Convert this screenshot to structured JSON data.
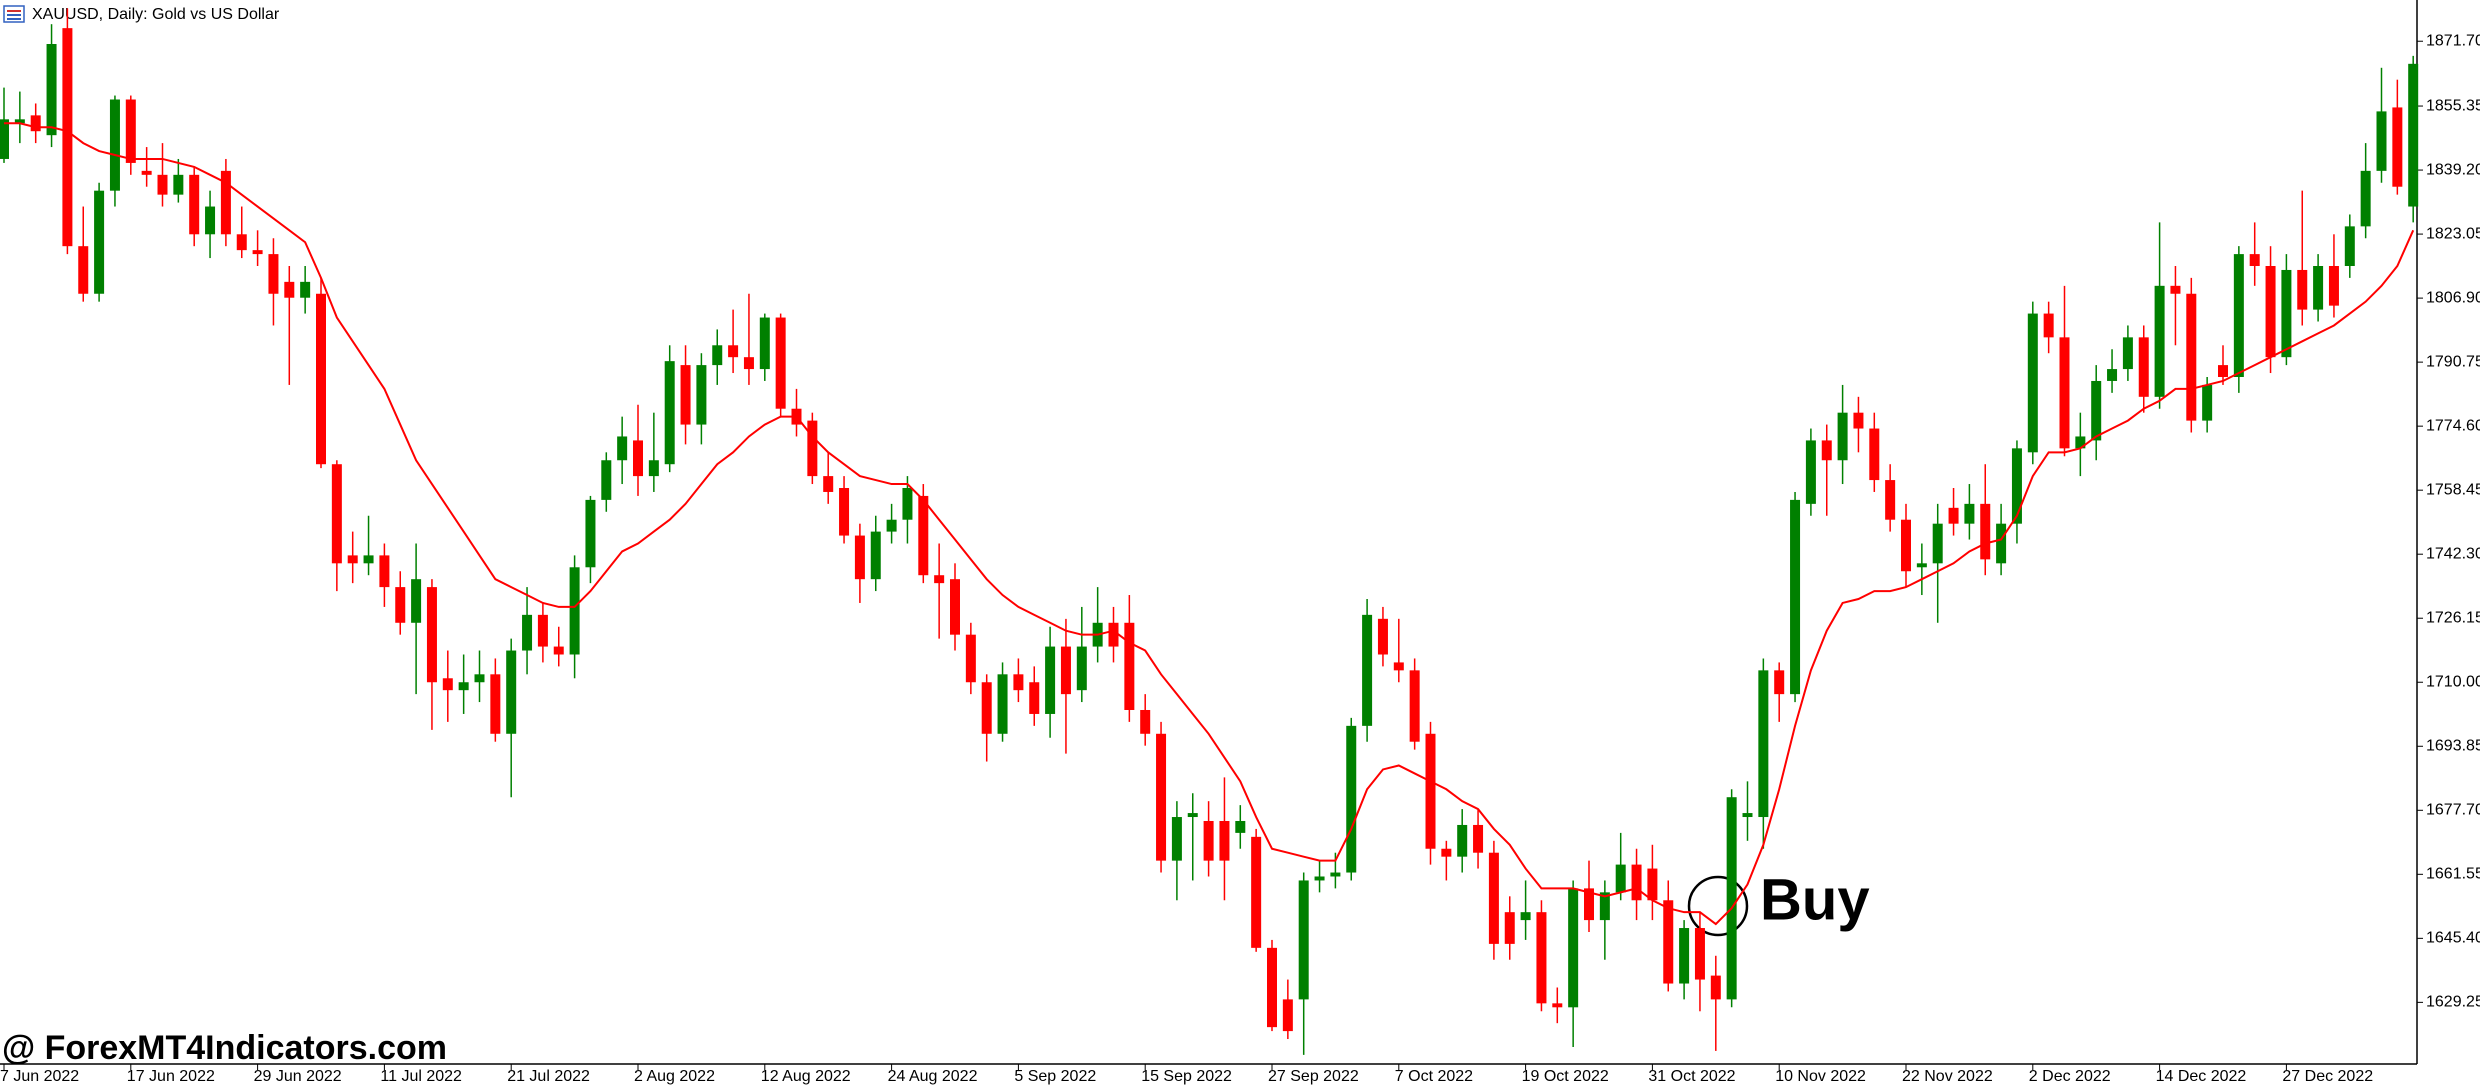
{
  "chart_data": {
    "type": "candlestick",
    "title": "XAUUSD, Daily:  Gold vs US Dollar",
    "watermark": "@ ForexMT4Indicators.com",
    "annotation": "Buy",
    "up_color": "#008000",
    "down_color": "#ff0000",
    "categories": [
      "7 Jun 2022",
      null,
      null,
      null,
      null,
      null,
      null,
      null,
      "17 Jun 2022",
      null,
      null,
      null,
      null,
      null,
      null,
      null,
      "29 Jun 2022",
      null,
      null,
      null,
      null,
      null,
      null,
      null,
      "11 Jul 2022",
      null,
      null,
      null,
      null,
      null,
      null,
      null,
      "21 Jul 2022",
      null,
      null,
      null,
      null,
      null,
      null,
      null,
      "2 Aug 2022",
      null,
      null,
      null,
      null,
      null,
      null,
      null,
      "12 Aug 2022",
      null,
      null,
      null,
      null,
      null,
      null,
      null,
      "24 Aug 2022",
      null,
      null,
      null,
      null,
      null,
      null,
      null,
      "5 Sep 2022",
      null,
      null,
      null,
      null,
      null,
      null,
      null,
      "15 Sep 2022",
      null,
      null,
      null,
      null,
      null,
      null,
      null,
      "27 Sep 2022",
      null,
      null,
      null,
      null,
      null,
      null,
      null,
      "7 Oct 2022",
      null,
      null,
      null,
      null,
      null,
      null,
      null,
      "19 Oct 2022",
      null,
      null,
      null,
      null,
      null,
      null,
      null,
      "31 Oct 2022",
      null,
      null,
      null,
      null,
      null,
      null,
      null,
      "10 Nov 2022",
      null,
      null,
      null,
      null,
      null,
      null,
      null,
      "22 Nov 2022",
      null,
      null,
      null,
      null,
      null,
      null,
      null,
      "2 Dec 2022",
      null,
      null,
      null,
      null,
      null,
      null,
      null,
      "14 Dec 2022",
      null,
      null,
      null,
      null,
      null,
      null,
      null,
      "27 Dec 2022",
      null,
      null,
      null,
      null,
      null,
      null,
      null,
      null
    ],
    "open": [
      1842,
      1851,
      1853,
      1848,
      1875,
      1820,
      1808,
      1834,
      1857,
      1839,
      1838,
      1833,
      1838,
      1823,
      1839,
      1823,
      1819,
      1818,
      1811,
      1807,
      1808,
      1765,
      1742,
      1740,
      1742,
      1734,
      1725,
      1734,
      1711,
      1708,
      1710,
      1712,
      1697,
      1718,
      1727,
      1719,
      1717,
      1739,
      1756,
      1766,
      1771,
      1762,
      1765,
      1790,
      1775,
      1790,
      1795,
      1792,
      1789,
      1802,
      1779,
      1776,
      1762,
      1759,
      1747,
      1736,
      1748,
      1751,
      1757,
      1737,
      1736,
      1722,
      1710,
      1697,
      1712,
      1710,
      1702,
      1719,
      1708,
      1719,
      1725,
      1725,
      1703,
      1697,
      1665,
      1676,
      1675,
      1675,
      1672,
      1671,
      1643,
      1630,
      1630,
      1660,
      1661,
      1662,
      1699,
      1726,
      1715,
      1713,
      1697,
      1668,
      1666,
      1674,
      1667,
      1652,
      1650,
      1652,
      1629,
      1628,
      1658,
      1650,
      1657,
      1664,
      1663,
      1655,
      1634,
      1648,
      1636,
      1630,
      1676,
      1676,
      1713,
      1707,
      1755,
      1771,
      1766,
      1778,
      1774,
      1761,
      1751,
      1739,
      1740,
      1754,
      1750,
      1755,
      1740,
      1750,
      1768,
      1803,
      1797,
      1769,
      1771,
      1786,
      1789,
      1797,
      1782,
      1810,
      1808,
      1776,
      1790,
      1787,
      1818,
      1815,
      1792,
      1814,
      1804,
      1815,
      1815,
      1825,
      1839,
      1855,
      1830
    ],
    "high": [
      1860,
      1859,
      1856,
      1876,
      1880,
      1830,
      1836,
      1858,
      1858,
      1845,
      1846,
      1842,
      1840,
      1834,
      1842,
      1830,
      1824,
      1822,
      1815,
      1815,
      1812,
      1766,
      1748,
      1752,
      1745,
      1738,
      1745,
      1736,
      1718,
      1717,
      1718,
      1716,
      1721,
      1734,
      1730,
      1724,
      1742,
      1757,
      1768,
      1777,
      1780,
      1778,
      1795,
      1795,
      1793,
      1799,
      1804,
      1808,
      1803,
      1803,
      1784,
      1778,
      1768,
      1762,
      1750,
      1752,
      1755,
      1762,
      1760,
      1745,
      1740,
      1725,
      1712,
      1715,
      1716,
      1714,
      1724,
      1726,
      1729,
      1734,
      1729,
      1732,
      1707,
      1700,
      1680,
      1682,
      1680,
      1686,
      1679,
      1673,
      1645,
      1635,
      1662,
      1665,
      1667,
      1701,
      1731,
      1729,
      1726,
      1716,
      1700,
      1670,
      1678,
      1678,
      1670,
      1656,
      1660,
      1655,
      1633,
      1660,
      1665,
      1660,
      1672,
      1668,
      1669,
      1660,
      1650,
      1652,
      1641,
      1683,
      1685,
      1716,
      1715,
      1758,
      1774,
      1775,
      1785,
      1782,
      1778,
      1765,
      1755,
      1745,
      1755,
      1759,
      1760,
      1765,
      1755,
      1771,
      1806,
      1806,
      1810,
      1778,
      1790,
      1794,
      1800,
      1800,
      1826,
      1815,
      1812,
      1787,
      1795,
      1820,
      1826,
      1820,
      1818,
      1834,
      1818,
      1823,
      1828,
      1846,
      1865,
      1862,
      1868
    ],
    "low": [
      1841,
      1846,
      1846,
      1845,
      1818,
      1806,
      1806,
      1830,
      1838,
      1835,
      1830,
      1831,
      1820,
      1817,
      1820,
      1817,
      1815,
      1800,
      1785,
      1803,
      1764,
      1733,
      1735,
      1737,
      1729,
      1722,
      1707,
      1698,
      1700,
      1702,
      1705,
      1695,
      1681,
      1712,
      1715,
      1714,
      1711,
      1735,
      1753,
      1760,
      1757,
      1758,
      1763,
      1770,
      1770,
      1785,
      1788,
      1785,
      1786,
      1777,
      1772,
      1760,
      1755,
      1745,
      1730,
      1733,
      1745,
      1745,
      1735,
      1721,
      1718,
      1707,
      1690,
      1695,
      1705,
      1699,
      1696,
      1692,
      1705,
      1715,
      1715,
      1700,
      1694,
      1662,
      1655,
      1660,
      1661,
      1655,
      1668,
      1642,
      1622,
      1620,
      1616,
      1657,
      1658,
      1660,
      1695,
      1714,
      1710,
      1693,
      1664,
      1660,
      1662,
      1663,
      1640,
      1640,
      1645,
      1627,
      1624,
      1618,
      1647,
      1640,
      1655,
      1650,
      1650,
      1632,
      1630,
      1627,
      1617,
      1628,
      1670,
      1668,
      1700,
      1705,
      1752,
      1752,
      1760,
      1768,
      1758,
      1748,
      1734,
      1732,
      1725,
      1747,
      1746,
      1737,
      1737,
      1745,
      1765,
      1793,
      1767,
      1762,
      1766,
      1783,
      1786,
      1778,
      1779,
      1795,
      1773,
      1773,
      1785,
      1783,
      1810,
      1788,
      1790,
      1800,
      1801,
      1802,
      1812,
      1822,
      1836,
      1833,
      1826
    ],
    "close": [
      1852,
      1852,
      1849,
      1871,
      1820,
      1808,
      1834,
      1857,
      1841,
      1838,
      1833,
      1838,
      1823,
      1830,
      1823,
      1819,
      1818,
      1808,
      1807,
      1811,
      1765,
      1740,
      1740,
      1742,
      1734,
      1725,
      1736,
      1710,
      1708,
      1710,
      1712,
      1697,
      1718,
      1727,
      1719,
      1717,
      1739,
      1756,
      1766,
      1772,
      1762,
      1766,
      1791,
      1775,
      1790,
      1795,
      1792,
      1789,
      1802,
      1779,
      1775,
      1762,
      1758,
      1747,
      1736,
      1748,
      1751,
      1759,
      1737,
      1735,
      1722,
      1710,
      1697,
      1712,
      1708,
      1702,
      1719,
      1707,
      1719,
      1725,
      1719,
      1703,
      1697,
      1665,
      1676,
      1677,
      1665,
      1665,
      1675,
      1643,
      1623,
      1622,
      1660,
      1661,
      1662,
      1699,
      1727,
      1717,
      1713,
      1695,
      1668,
      1666,
      1674,
      1667,
      1644,
      1644,
      1652,
      1629,
      1628,
      1658,
      1650,
      1657,
      1664,
      1655,
      1655,
      1634,
      1648,
      1635,
      1630,
      1681,
      1677,
      1713,
      1707,
      1756,
      1771,
      1766,
      1778,
      1774,
      1761,
      1751,
      1738,
      1740,
      1750,
      1750,
      1755,
      1741,
      1750,
      1769,
      1803,
      1797,
      1769,
      1772,
      1786,
      1789,
      1797,
      1782,
      1810,
      1808,
      1776,
      1785,
      1787,
      1818,
      1815,
      1792,
      1814,
      1804,
      1815,
      1805,
      1825,
      1839,
      1854,
      1835,
      1866
    ],
    "series": [
      {
        "color": "#ff0000",
        "values": [
          1851,
          1851,
          1850,
          1850,
          1849,
          1846,
          1844,
          1843,
          1842,
          1842,
          1842,
          1841,
          1840,
          1838,
          1836,
          1833,
          1830,
          1827,
          1824,
          1821,
          1812,
          1802,
          1796,
          1790,
          1784,
          1775,
          1766,
          1760,
          1754,
          1748,
          1742,
          1736,
          1734,
          1732,
          1730,
          1729,
          1729,
          1733,
          1738,
          1743,
          1745,
          1748,
          1751,
          1755,
          1760,
          1765,
          1768,
          1772,
          1775,
          1777,
          1777,
          1772,
          1768,
          1765,
          1762,
          1761,
          1760,
          1760,
          1756,
          1751,
          1746,
          1741,
          1736,
          1732,
          1729,
          1727,
          1725,
          1723,
          1722,
          1722,
          1723,
          1720,
          1718,
          1712,
          1707,
          1702,
          1697,
          1691,
          1685,
          1676,
          1668,
          1667,
          1666,
          1665,
          1665,
          1673,
          1683,
          1688,
          1689,
          1687,
          1685,
          1683,
          1680,
          1678,
          1673,
          1669,
          1663,
          1658,
          1658,
          1658,
          1657,
          1656,
          1657,
          1658,
          1655,
          1653,
          1652,
          1652,
          1649,
          1653,
          1659,
          1669,
          1683,
          1699,
          1713,
          1723,
          1730,
          1731,
          1733,
          1733,
          1734,
          1736,
          1738,
          1740,
          1743,
          1745,
          1746,
          1752,
          1762,
          1768,
          1768,
          1769,
          1772,
          1774,
          1776,
          1779,
          1781,
          1784,
          1784,
          1785,
          1786,
          1788,
          1790,
          1792,
          1794,
          1796,
          1798,
          1800,
          1803,
          1806,
          1810,
          1815,
          1824
        ]
      }
    ],
    "ylim": [
      1613.7,
      1882.1
    ],
    "yticks": [
      {
        "value": 1871.7,
        "label": "1871.70"
      },
      1855.35,
      {
        "value": 1839.2,
        "label": "1839.20"
      },
      {
        "value": 1823.05,
        "label": "1823.05"
      },
      {
        "value": 1806.9,
        "label": "1806.90"
      },
      1790.75,
      {
        "value": 1774.6,
        "label": "1774.60"
      },
      1758.45,
      {
        "value": 1742.3,
        "label": "1742.30"
      },
      1726.15,
      {
        "value": 1710,
        "label": "1710.00"
      },
      1693.85,
      {
        "value": 1677.7,
        "label": "1677.70"
      },
      1661.55,
      {
        "value": 1645.4,
        "label": "1645.40"
      },
      1629.25
    ]
  }
}
